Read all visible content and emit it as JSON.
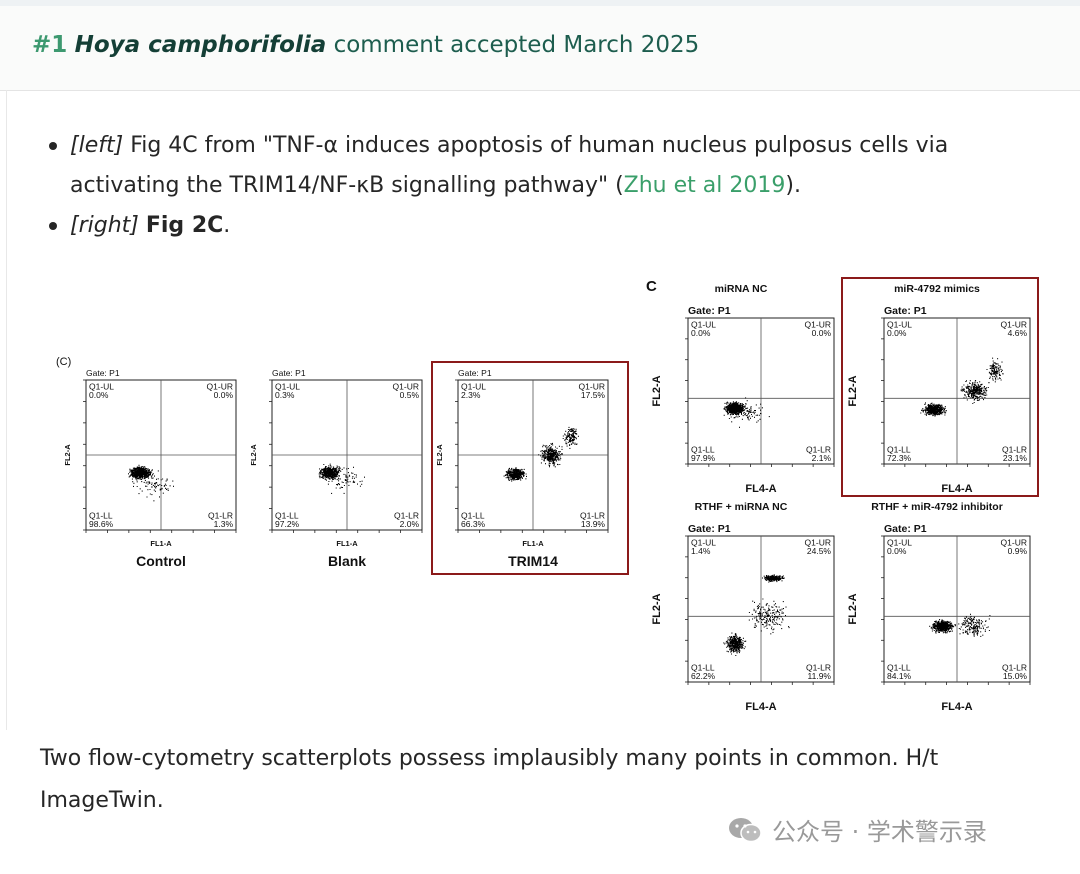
{
  "header": {
    "number": "#1",
    "species": "Hoya camphorifolia",
    "status_text": "comment accepted March 2025"
  },
  "bullets": [
    {
      "tag": "[left]",
      "text_a": "Fig 4C from \"TNF-α induces apoptosis of human nucleus pulposus cells via activating the TRIM14/NF-κB signalling pathway\" (",
      "link": "Zhu et al 2019",
      "text_b": ")."
    },
    {
      "tag": "[right]",
      "bold": "Fig 2C",
      "text_b": "."
    }
  ],
  "figure_left": {
    "panel_letter": "(C)",
    "gate": "Gate: P1",
    "xlabel": "FL1-A",
    "ylabel": "FL2-A",
    "panels": [
      {
        "name": "Control",
        "ul": "0.0%",
        "ur": "0.0%",
        "ll": "98.6%",
        "lr": "1.3%",
        "highlight": false
      },
      {
        "name": "Blank",
        "ul": "0.3%",
        "ur": "0.5%",
        "ll": "97.2%",
        "lr": "2.0%",
        "highlight": false
      },
      {
        "name": "TRIM14",
        "ul": "2.3%",
        "ur": "17.5%",
        "ll": "66.3%",
        "lr": "13.9%",
        "highlight": true
      }
    ]
  },
  "figure_right": {
    "panel_letter": "C",
    "gate": "Gate: P1",
    "xlabel": "FL4-A",
    "ylabel": "FL2-A",
    "panels": [
      {
        "name": "miRNA NC",
        "ul": "0.0%",
        "ur": "0.0%",
        "ll": "97.9%",
        "lr": "2.1%",
        "highlight": false
      },
      {
        "name": "miR-4792 mimics",
        "ul": "0.0%",
        "ur": "4.6%",
        "ll": "72.3%",
        "lr": "23.1%",
        "highlight": true
      },
      {
        "name": "RTHF + miRNA NC",
        "ul": "1.4%",
        "ur": "24.5%",
        "ll": "62.2%",
        "lr": "11.9%",
        "highlight": false
      },
      {
        "name": "RTHF + miR-4792 inhibitor",
        "ul": "0.0%",
        "ur": "0.9%",
        "ll": "84.1%",
        "lr": "15.0%",
        "highlight": false
      }
    ]
  },
  "quadrant_labels": {
    "ul": "Q1-UL",
    "ur": "Q1-UR",
    "ll": "Q1-LL",
    "lr": "Q1-LR"
  },
  "caption": "Two flow-cytometry scatterplots possess implausibly many points in common. H/t ImageTwin.",
  "watermark": "公众号 · 学术警示录",
  "colors": {
    "accent_green": "#3a9f6a",
    "title_green": "#1d5d4e",
    "highlight_box": "#8b1a1a"
  }
}
